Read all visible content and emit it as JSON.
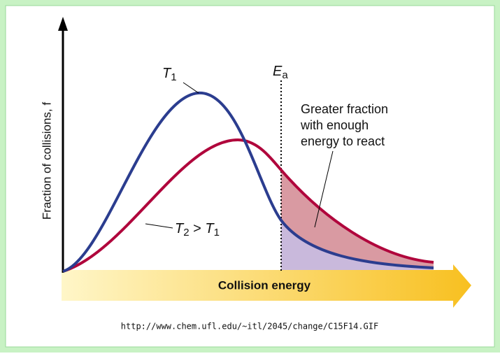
{
  "y_axis_label": "Fraction of collisions, f",
  "x_axis_label": "Collision energy",
  "t1_label": {
    "symbol": "T",
    "subscript": "1"
  },
  "ea_label": {
    "symbol": "E",
    "subscript": "a"
  },
  "t2_label": {
    "symbol": "T",
    "subscript": "2",
    "relation": " > ",
    "symbol2": "T",
    "subscript2": "1"
  },
  "annotation": [
    "Greater fraction",
    "with enough",
    "energy to react"
  ],
  "source_url": "http://www.chem.ufl.edu/~itl/2045/change/C15F14.GIF"
}
